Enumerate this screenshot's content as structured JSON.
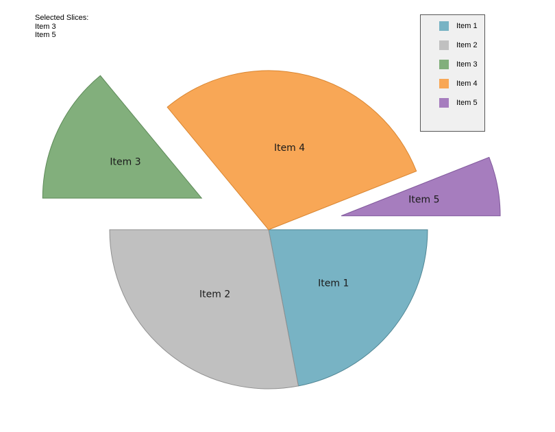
{
  "selection": {
    "heading": "Selected Slices:",
    "items": [
      "Item 3",
      "Item 5"
    ]
  },
  "chart_data": {
    "type": "pie",
    "start_angle_deg": 0,
    "direction": "clockwise",
    "slices": [
      {
        "label": "Item 1",
        "value": 22,
        "color": "#78b3c4",
        "stroke": "#4f8593",
        "exploded": false
      },
      {
        "label": "Item 2",
        "value": 28,
        "color": "#c0c0c0",
        "stroke": "#8f8f8f",
        "exploded": false
      },
      {
        "label": "Item 3",
        "value": 14,
        "color": "#82af7c",
        "stroke": "#5d8a58",
        "exploded": true
      },
      {
        "label": "Item 4",
        "value": 30,
        "color": "#f8a756",
        "stroke": "#d98530",
        "exploded": false
      },
      {
        "label": "Item 5",
        "value": 6,
        "color": "#a67dbe",
        "stroke": "#7f579b",
        "exploded": true
      }
    ],
    "legend": {
      "placement": "top-right",
      "entries": [
        "Item 1",
        "Item 2",
        "Item 3",
        "Item 4",
        "Item 5"
      ]
    }
  }
}
